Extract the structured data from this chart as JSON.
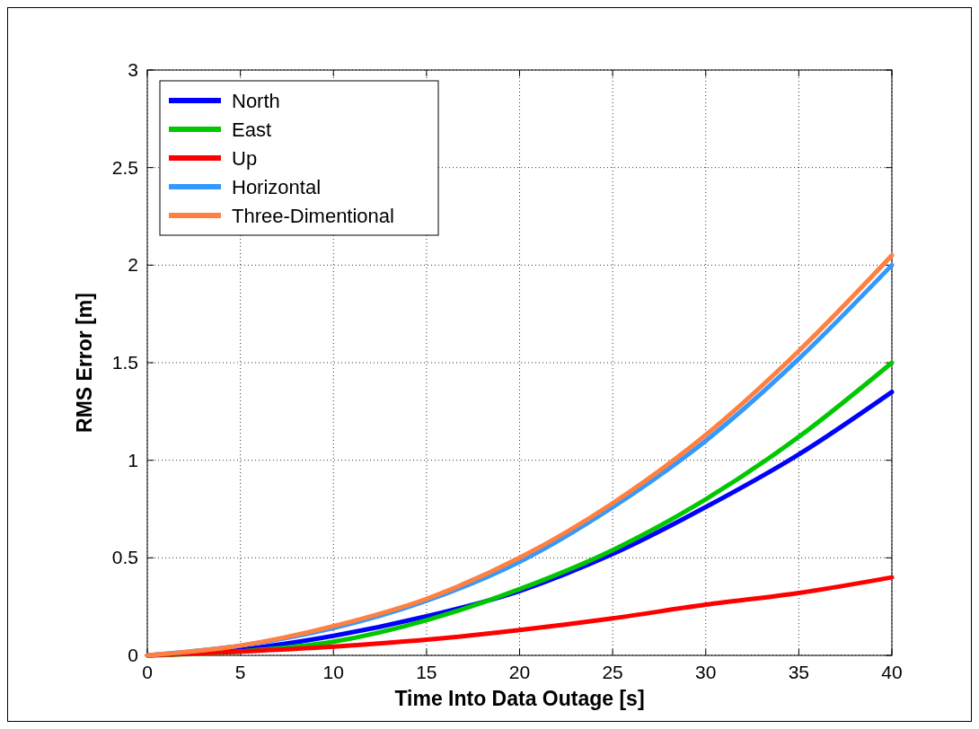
{
  "chart_data": {
    "type": "line",
    "xlabel": "Time Into Data Outage [s]",
    "ylabel": "RMS Error [m]",
    "x": [
      0,
      5,
      10,
      15,
      20,
      25,
      30,
      35,
      40
    ],
    "series": [
      {
        "name": "North",
        "color": "#0000ff",
        "values": [
          0,
          0.03,
          0.1,
          0.2,
          0.33,
          0.52,
          0.76,
          1.03,
          1.35
        ]
      },
      {
        "name": "East",
        "color": "#00c800",
        "values": [
          0,
          0.02,
          0.07,
          0.18,
          0.34,
          0.54,
          0.8,
          1.12,
          1.5
        ]
      },
      {
        "name": "Up",
        "color": "#ff0000",
        "values": [
          0,
          0.02,
          0.045,
          0.08,
          0.13,
          0.19,
          0.26,
          0.32,
          0.4
        ]
      },
      {
        "name": "Horizontal",
        "color": "#3399ff",
        "values": [
          0,
          0.05,
          0.14,
          0.28,
          0.48,
          0.76,
          1.1,
          1.52,
          2.0
        ]
      },
      {
        "name": "Three-Dimentional",
        "color": "#ff8040",
        "values": [
          0,
          0.05,
          0.15,
          0.29,
          0.5,
          0.78,
          1.13,
          1.56,
          2.05
        ]
      }
    ],
    "xlim": [
      0,
      40
    ],
    "xticks": [
      0,
      5,
      10,
      15,
      20,
      25,
      30,
      35,
      40
    ],
    "ylim": [
      0,
      3
    ],
    "yticks": [
      0,
      0.5,
      1,
      1.5,
      2,
      2.5,
      3
    ],
    "grid": true,
    "legend": "top left",
    "line_style": "solid"
  }
}
